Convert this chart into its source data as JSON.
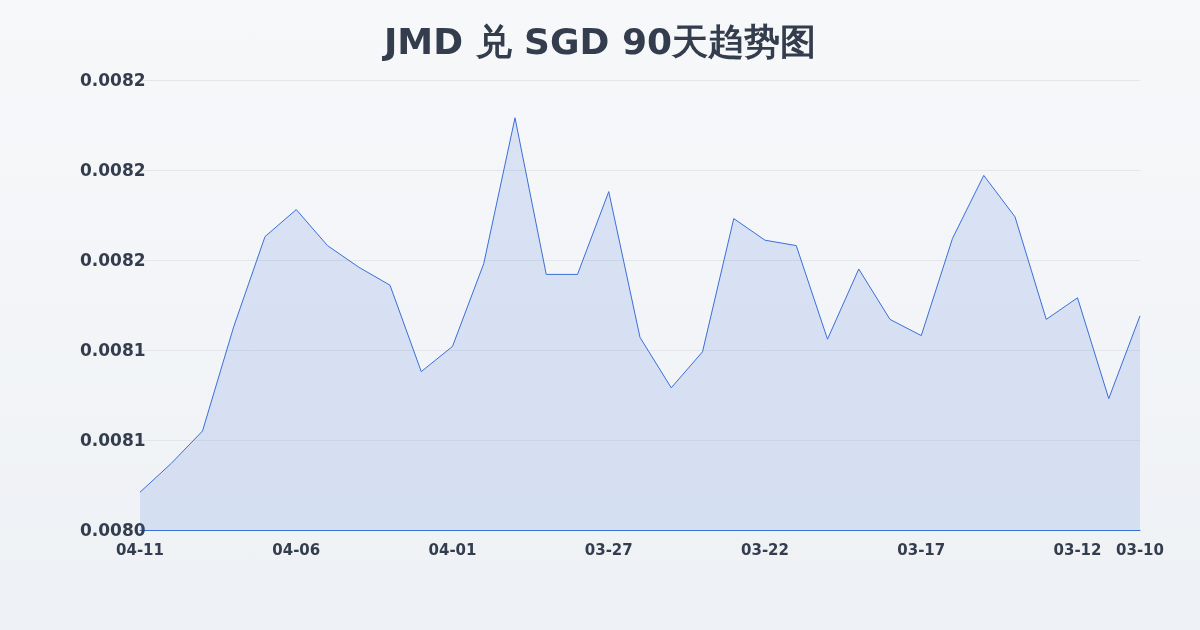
{
  "chart_data": {
    "type": "area",
    "title": "JMD 兑 SGD 90天趋势图",
    "categories": [
      "04-11",
      null,
      null,
      null,
      null,
      "04-06",
      null,
      null,
      null,
      null,
      "04-01",
      null,
      null,
      null,
      null,
      "03-27",
      null,
      null,
      null,
      null,
      "03-22",
      null,
      null,
      null,
      null,
      "03-17",
      null,
      null,
      null,
      null,
      "03-12",
      null,
      "03-10"
    ],
    "series": [
      {
        "color": "#3a6fd8",
        "values": [
          0.008021,
          0.008037,
          0.008055,
          0.008113,
          0.008163,
          0.008178,
          0.008158,
          0.008146,
          0.008136,
          0.008088,
          0.008102,
          0.008148,
          0.008229,
          0.008142,
          0.008142,
          0.008188,
          0.008107,
          0.008079,
          0.008099,
          0.008173,
          0.008161,
          0.008158,
          0.008106,
          0.008145,
          0.008117,
          0.008108,
          0.008162,
          0.008197,
          0.008174,
          0.008117,
          0.008129,
          0.008073,
          0.008119
        ]
      }
    ],
    "ylim": [
      0.008,
      0.00825
    ],
    "yticks": [
      {
        "value": 0.008,
        "label": "0.0080"
      },
      {
        "value": 0.00805,
        "label": "0.0081"
      },
      {
        "value": 0.0081,
        "label": "0.0081"
      },
      {
        "value": 0.00815,
        "label": "0.0082"
      },
      {
        "value": 0.0082,
        "label": "0.0082"
      },
      {
        "value": 0.00825,
        "label": "0.0082"
      }
    ],
    "grid": "y",
    "marker": "none",
    "line_style": "solid"
  }
}
